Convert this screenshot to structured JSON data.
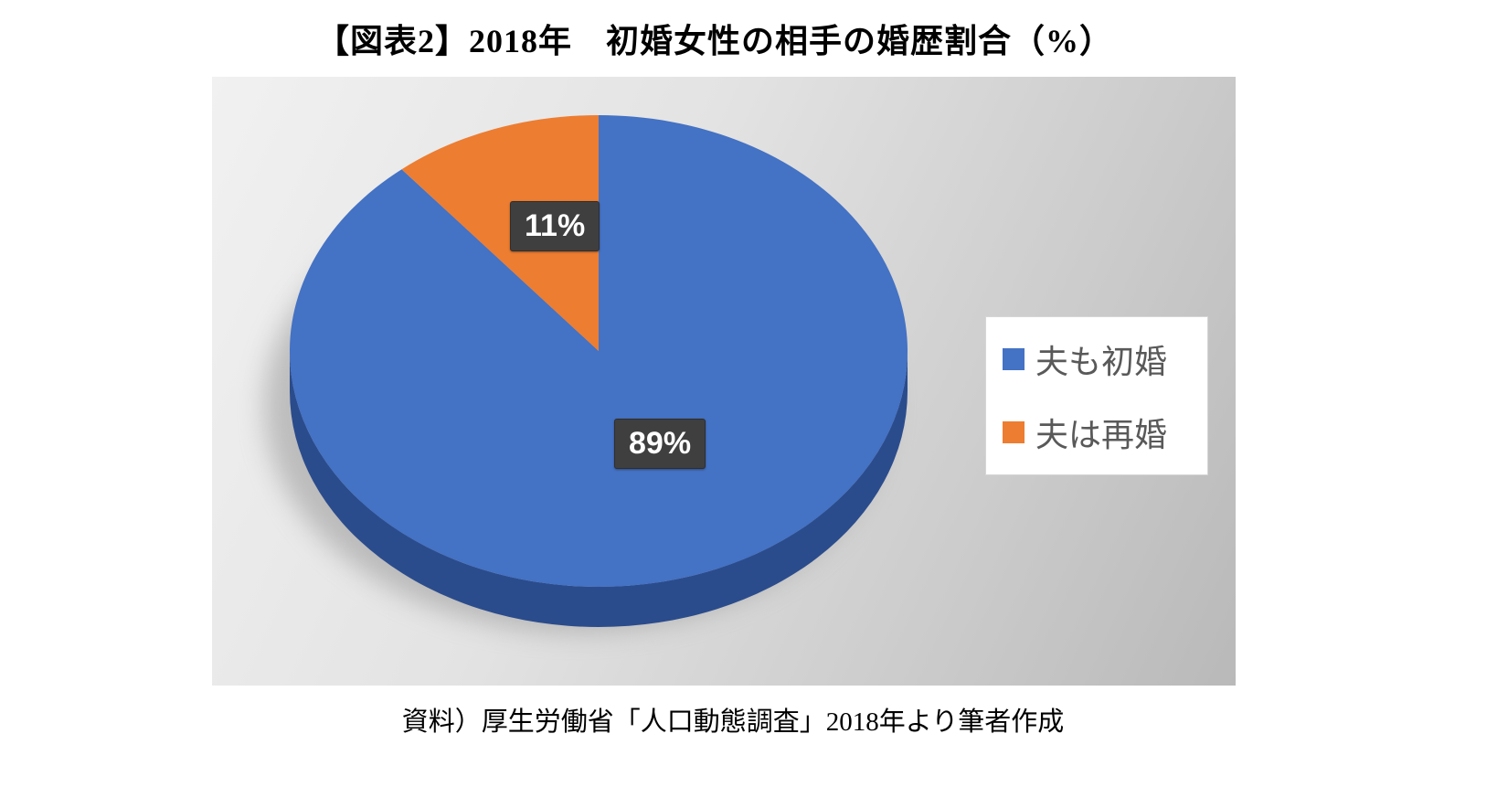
{
  "title": "【図表2】2018年　初婚女性の相手の婚歴割合（%）",
  "source": "資料）厚生労働省「人口動態調査」2018年より筆者作成",
  "chart_data": {
    "type": "pie",
    "style": "3d",
    "title": "【図表2】2018年　初婚女性の相手の婚歴割合（%）",
    "categories": [
      "夫も初婚",
      "夫は再婚"
    ],
    "values": [
      89,
      11
    ],
    "unit": "%",
    "data_labels": [
      "89%",
      "11%"
    ],
    "colors": [
      "#4472C4",
      "#ED7D31"
    ],
    "side_color": "#2B4C8C",
    "label_box_color": "#3F3F3F",
    "legend_position": "right",
    "legend_text_color": "#595959",
    "start_angle_deg": 0,
    "direction": "clockwise"
  },
  "legend": {
    "items": [
      {
        "label": "夫も初婚",
        "color": "#4472C4"
      },
      {
        "label": "夫は再婚",
        "color": "#ED7D31"
      }
    ]
  }
}
